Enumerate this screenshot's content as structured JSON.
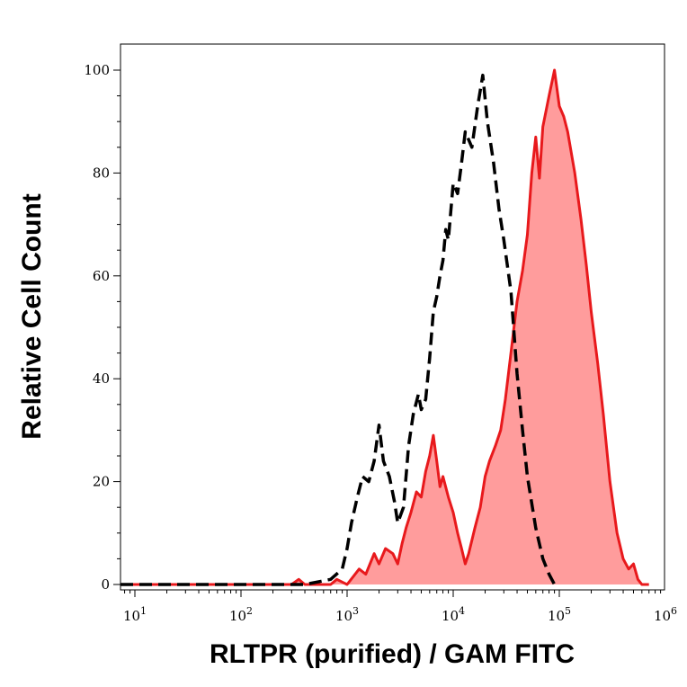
{
  "chart_data": {
    "type": "area",
    "xlabel": "RLTPR (purified) / GAM FITC",
    "ylabel": "Relative Cell Count",
    "x_scale": "log",
    "xlim": [
      10,
      1000000
    ],
    "ylim": [
      0,
      100
    ],
    "grid": false,
    "x_ticks": [
      {
        "base": "10",
        "exp": "1"
      },
      {
        "base": "10",
        "exp": "2"
      },
      {
        "base": "10",
        "exp": "3"
      },
      {
        "base": "10",
        "exp": "4"
      },
      {
        "base": "10",
        "exp": "5"
      },
      {
        "base": "10",
        "exp": "6"
      }
    ],
    "y_ticks": [
      "0",
      "20",
      "40",
      "60",
      "80",
      "100"
    ],
    "series": [
      {
        "style": "dashed-line",
        "color": "#000000",
        "points": [
          [
            5,
            0
          ],
          [
            400,
            0
          ],
          [
            700,
            1
          ],
          [
            900,
            3
          ],
          [
            1000,
            7
          ],
          [
            1100,
            12
          ],
          [
            1250,
            17
          ],
          [
            1400,
            21
          ],
          [
            1600,
            20
          ],
          [
            1800,
            24
          ],
          [
            2000,
            31
          ],
          [
            2200,
            24
          ],
          [
            2500,
            21
          ],
          [
            2800,
            16
          ],
          [
            3000,
            12
          ],
          [
            3400,
            15
          ],
          [
            3800,
            27
          ],
          [
            4200,
            33
          ],
          [
            4700,
            37
          ],
          [
            5000,
            34
          ],
          [
            5500,
            36
          ],
          [
            6000,
            44
          ],
          [
            6500,
            53
          ],
          [
            7000,
            56
          ],
          [
            7500,
            60
          ],
          [
            8000,
            63
          ],
          [
            8500,
            69
          ],
          [
            9000,
            67
          ],
          [
            10000,
            78
          ],
          [
            11000,
            76
          ],
          [
            12000,
            82
          ],
          [
            13000,
            88
          ],
          [
            15000,
            85
          ],
          [
            17000,
            93
          ],
          [
            19000,
            99
          ],
          [
            21000,
            90
          ],
          [
            24000,
            82
          ],
          [
            27000,
            73
          ],
          [
            30000,
            67
          ],
          [
            35000,
            57
          ],
          [
            40000,
            41
          ],
          [
            45000,
            30
          ],
          [
            50000,
            21
          ],
          [
            60000,
            11
          ],
          [
            70000,
            5
          ],
          [
            80000,
            2
          ],
          [
            90000,
            0
          ],
          [
            100000,
            0
          ]
        ]
      },
      {
        "style": "filled",
        "color": "#e8191c",
        "fill": "#ff9c9c",
        "points": [
          [
            5,
            0
          ],
          [
            300,
            0
          ],
          [
            350,
            1
          ],
          [
            400,
            0
          ],
          [
            700,
            0
          ],
          [
            800,
            1
          ],
          [
            1000,
            0
          ],
          [
            1300,
            3
          ],
          [
            1500,
            2
          ],
          [
            1800,
            6
          ],
          [
            2000,
            4
          ],
          [
            2300,
            7
          ],
          [
            2700,
            6
          ],
          [
            3000,
            4
          ],
          [
            3300,
            8
          ],
          [
            3600,
            11
          ],
          [
            4000,
            14
          ],
          [
            4500,
            18
          ],
          [
            5000,
            17
          ],
          [
            5500,
            22
          ],
          [
            6000,
            25
          ],
          [
            6500,
            29
          ],
          [
            7000,
            24
          ],
          [
            7500,
            19
          ],
          [
            8000,
            21
          ],
          [
            9000,
            17
          ],
          [
            10000,
            14
          ],
          [
            11000,
            10
          ],
          [
            12000,
            7
          ],
          [
            13000,
            4
          ],
          [
            14000,
            6
          ],
          [
            16000,
            11
          ],
          [
            18000,
            15
          ],
          [
            20000,
            21
          ],
          [
            22000,
            24
          ],
          [
            25000,
            27
          ],
          [
            28000,
            30
          ],
          [
            31000,
            36
          ],
          [
            35000,
            45
          ],
          [
            40000,
            55
          ],
          [
            45000,
            61
          ],
          [
            50000,
            68
          ],
          [
            55000,
            80
          ],
          [
            60000,
            87
          ],
          [
            65000,
            79
          ],
          [
            70000,
            89
          ],
          [
            80000,
            95
          ],
          [
            90000,
            100
          ],
          [
            100000,
            93
          ],
          [
            110000,
            91
          ],
          [
            120000,
            88
          ],
          [
            140000,
            80
          ],
          [
            160000,
            71
          ],
          [
            180000,
            62
          ],
          [
            200000,
            53
          ],
          [
            230000,
            43
          ],
          [
            260000,
            33
          ],
          [
            300000,
            20
          ],
          [
            350000,
            10
          ],
          [
            400000,
            5
          ],
          [
            450000,
            3
          ],
          [
            500000,
            4
          ],
          [
            550000,
            1
          ],
          [
            600000,
            0
          ],
          [
            700000,
            0
          ]
        ]
      }
    ]
  }
}
